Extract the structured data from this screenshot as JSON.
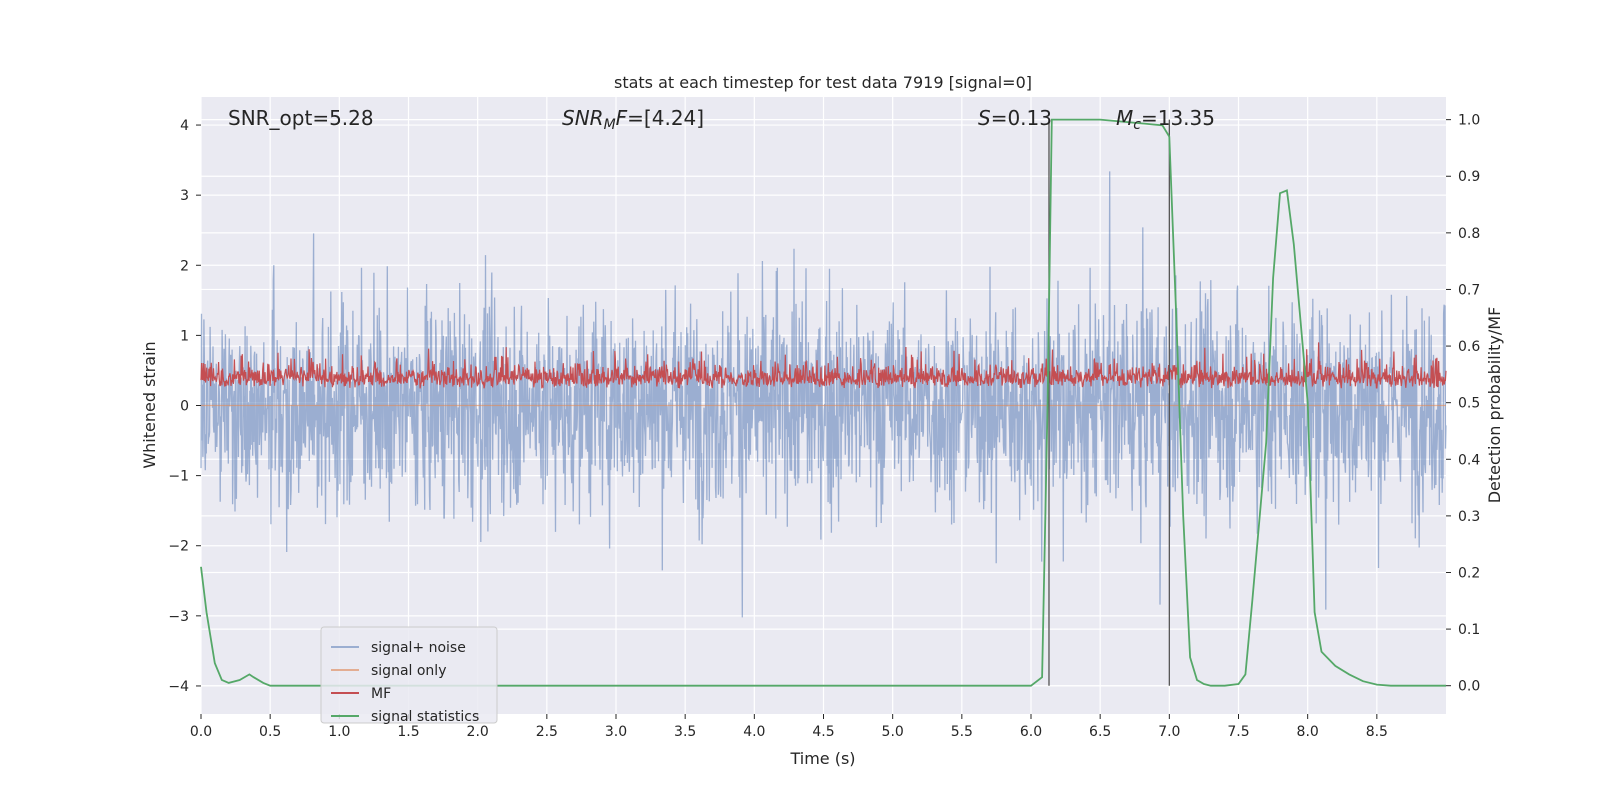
{
  "chart_data": {
    "type": "line",
    "title": "stats at each timestep for test data 7919 [signal=0]",
    "xlabel": "Time (s)",
    "ylabel": "Whitened strain",
    "ylabel_right": "Detection probability/MF",
    "xlim": [
      0.0,
      9.0
    ],
    "ylim": [
      -4.4,
      4.4
    ],
    "ylim_right": [
      -0.05,
      1.04
    ],
    "x_ticks": [
      "0.0",
      "0.5",
      "1.0",
      "1.5",
      "2.0",
      "2.5",
      "3.0",
      "3.5",
      "4.0",
      "4.5",
      "5.0",
      "5.5",
      "6.0",
      "6.5",
      "7.0",
      "7.5",
      "8.0",
      "8.5"
    ],
    "y_ticks": [
      "4",
      "3",
      "2",
      "1",
      "0",
      "−1",
      "−2",
      "−3",
      "−4"
    ],
    "y_right_ticks": [
      "1.0",
      "0.9",
      "0.8",
      "0.7",
      "0.6",
      "0.5",
      "0.4",
      "0.3",
      "0.2",
      "0.1",
      "0.0"
    ],
    "grid": true,
    "legend_position": "lower-left",
    "annotations": [
      {
        "id": "snr-opt",
        "text": "SNR_opt=5.28"
      },
      {
        "id": "snr-mf",
        "text": "SNR_MF=[4.24]"
      },
      {
        "id": "s-stat",
        "text": "S=0.13"
      },
      {
        "id": "mc",
        "text": "M_c=13.35"
      }
    ],
    "vlines_x": [
      6.13,
      7.0
    ],
    "series": [
      {
        "name": "signal+ noise",
        "color": "#4c72b0",
        "alpha": 0.5,
        "axis": "left",
        "kind": "noise",
        "amplitude_range": [
          -4.0,
          4.0
        ]
      },
      {
        "name": "signal only",
        "color": "#dd8452",
        "alpha": 0.6,
        "axis": "left",
        "kind": "flat",
        "value": 0.0
      },
      {
        "name": "MF",
        "color": "#c44e52",
        "axis": "left",
        "kind": "noise",
        "amplitude_range": [
          0.05,
          0.9
        ]
      },
      {
        "name": "signal statistics",
        "color": "#55a868",
        "axis": "right",
        "kind": "line",
        "x": [
          0.0,
          0.04,
          0.1,
          0.15,
          0.2,
          0.28,
          0.35,
          0.38,
          0.45,
          0.5,
          1.0,
          2.0,
          3.0,
          4.0,
          5.0,
          6.0,
          6.08,
          6.12,
          6.15,
          6.2,
          6.5,
          6.95,
          7.0,
          7.05,
          7.1,
          7.15,
          7.2,
          7.25,
          7.3,
          7.4,
          7.5,
          7.55,
          7.6,
          7.7,
          7.75,
          7.8,
          7.85,
          7.9,
          8.0,
          8.05,
          8.1,
          8.2,
          8.3,
          8.4,
          8.5,
          8.6,
          8.8,
          9.0
        ],
        "y": [
          0.21,
          0.13,
          0.04,
          0.01,
          0.005,
          0.01,
          0.02,
          0.015,
          0.005,
          0.0,
          0.0,
          0.0,
          0.0,
          0.0,
          0.0,
          0.0,
          0.015,
          0.5,
          1.0,
          1.0,
          1.0,
          0.99,
          0.97,
          0.65,
          0.3,
          0.05,
          0.01,
          0.003,
          0.0,
          0.0,
          0.003,
          0.02,
          0.15,
          0.43,
          0.72,
          0.87,
          0.875,
          0.78,
          0.5,
          0.13,
          0.06,
          0.035,
          0.02,
          0.008,
          0.002,
          0.0,
          0.0,
          0.0
        ]
      }
    ]
  }
}
